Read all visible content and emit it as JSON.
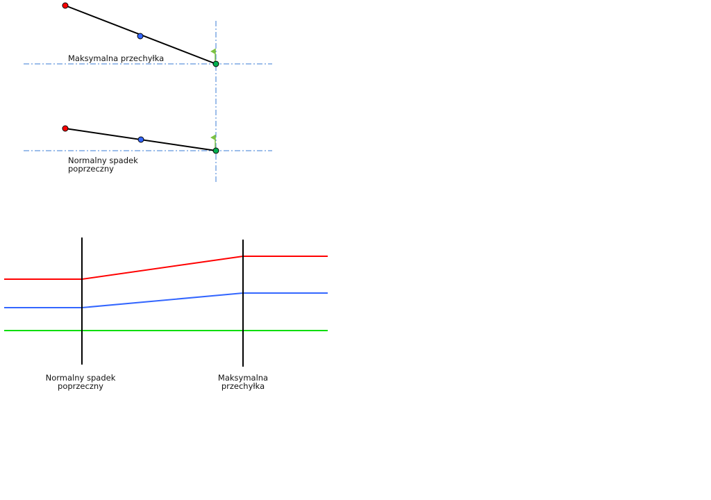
{
  "top_diagram": {
    "max_label": "Maksymalna przechyłka",
    "normal_label_line1": "Normalny spadek",
    "normal_label_line2": "poprzeczny"
  },
  "bottom_diagram": {
    "normal_label_line1": "Normalny spadek",
    "normal_label_line2": "poprzeczny",
    "max_label_line1": "Maksymalna",
    "max_label_line2": "przechyłka"
  },
  "colors": {
    "red_edge": "#ff0000",
    "blue_center": "#3366ff",
    "green_pivot": "#00cc00",
    "axis_line": "#3a7bd5",
    "flag": "#7dc242"
  }
}
